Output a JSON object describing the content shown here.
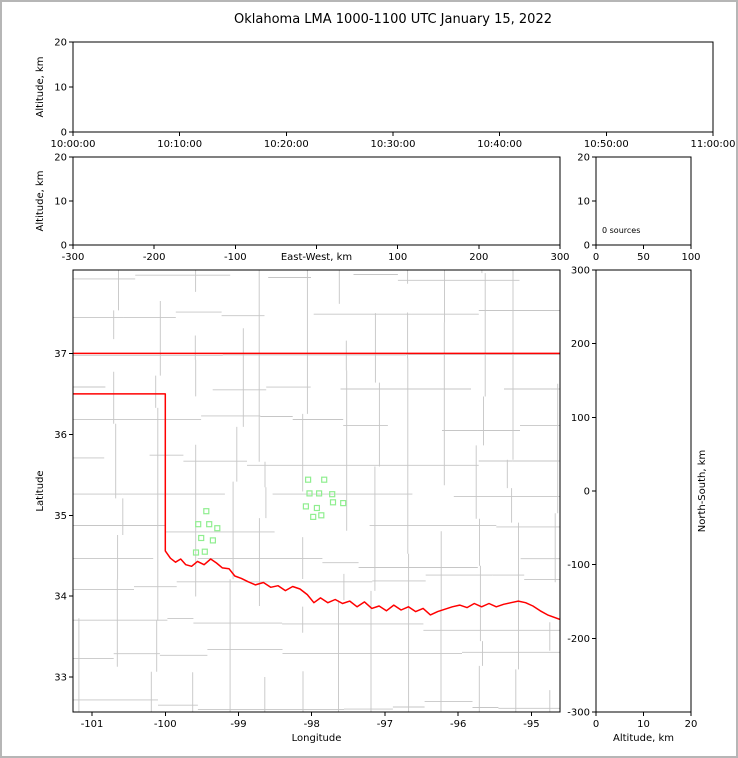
{
  "title": "Oklahoma LMA 1000-1100 UTC January 15, 2022",
  "colors": {
    "frame": "#000000",
    "tick_text": "#000000",
    "county": "#c6c6c6",
    "state_border": "#ff0000",
    "station": "#90ee90",
    "background": "#ffffff",
    "outer_border": "#b6b6b6"
  },
  "chart_data": [
    {
      "id": "time-height",
      "type": "scatter",
      "title": "",
      "xlabel": "",
      "ylabel": "Altitude, km",
      "xlim": [
        0,
        3600
      ],
      "ylim": [
        0,
        20
      ],
      "xtick_values": [
        0,
        600,
        1200,
        1800,
        2400,
        3000,
        3600
      ],
      "xtick_labels": [
        "10:00:00",
        "10:10:00",
        "10:20:00",
        "10:30:00",
        "10:40:00",
        "10:50:00",
        "11:00:00"
      ],
      "ytick_values": [
        0,
        10,
        20
      ],
      "grid": false,
      "points": []
    },
    {
      "id": "ew-height",
      "type": "scatter",
      "xlabel": "East-West, km",
      "xlabel_inline": true,
      "ylabel": "Altitude, km",
      "xlim": [
        -300,
        300
      ],
      "ylim": [
        0,
        20
      ],
      "xtick_values": [
        -300,
        -200,
        -100,
        0,
        100,
        200,
        300
      ],
      "ytick_values": [
        0,
        10,
        20
      ],
      "grid": false,
      "points": []
    },
    {
      "id": "source-histogram",
      "type": "line",
      "annotation": "0 sources",
      "xlim": [
        0,
        100
      ],
      "ylim": [
        0,
        20
      ],
      "xtick_values": [
        0,
        50,
        100
      ],
      "ytick_values": [
        0,
        10,
        20
      ],
      "grid": false,
      "points": []
    },
    {
      "id": "plan-view",
      "type": "scatter",
      "subtype": "map",
      "xlabel": "Longitude",
      "ylabel": "Latitude",
      "xlim": [
        -101.26,
        -94.61
      ],
      "ylim": [
        32.57,
        38.03
      ],
      "xtick_values": [
        -101,
        -100,
        -99,
        -98,
        -97,
        -96,
        -95
      ],
      "ytick_values": [
        33,
        34,
        35,
        36,
        37
      ],
      "grid": false,
      "stations": [
        [
          -98.05,
          35.44
        ],
        [
          -97.83,
          35.44
        ],
        [
          -98.03,
          35.27
        ],
        [
          -97.9,
          35.27
        ],
        [
          -97.72,
          35.26
        ],
        [
          -98.08,
          35.11
        ],
        [
          -97.93,
          35.09
        ],
        [
          -97.71,
          35.16
        ],
        [
          -97.57,
          35.15
        ],
        [
          -97.98,
          34.98
        ],
        [
          -97.87,
          35.0
        ],
        [
          -99.44,
          35.05
        ],
        [
          -99.55,
          34.89
        ],
        [
          -99.4,
          34.89
        ],
        [
          -99.29,
          34.84
        ],
        [
          -99.51,
          34.72
        ],
        [
          -99.35,
          34.69
        ],
        [
          -99.46,
          34.55
        ],
        [
          -99.58,
          34.54
        ]
      ],
      "state_border": [
        [
          [
            -101.3,
            37.0
          ],
          [
            -94.4,
            37.0
          ]
        ],
        [
          [
            -101.3,
            36.5
          ],
          [
            -100.0,
            36.5
          ],
          [
            -100.0,
            34.56
          ],
          [
            -99.93,
            34.47
          ],
          [
            -99.86,
            34.42
          ],
          [
            -99.79,
            34.46
          ],
          [
            -99.72,
            34.39
          ],
          [
            -99.64,
            34.37
          ],
          [
            -99.56,
            34.43
          ],
          [
            -99.47,
            34.39
          ],
          [
            -99.38,
            34.46
          ],
          [
            -99.3,
            34.41
          ],
          [
            -99.22,
            34.35
          ],
          [
            -99.13,
            34.34
          ],
          [
            -99.05,
            34.25
          ],
          [
            -98.96,
            34.22
          ],
          [
            -98.87,
            34.18
          ],
          [
            -98.77,
            34.14
          ],
          [
            -98.66,
            34.17
          ],
          [
            -98.56,
            34.11
          ],
          [
            -98.46,
            34.13
          ],
          [
            -98.36,
            34.07
          ],
          [
            -98.26,
            34.12
          ],
          [
            -98.16,
            34.09
          ],
          [
            -98.06,
            34.02
          ],
          [
            -97.97,
            33.92
          ],
          [
            -97.88,
            33.98
          ],
          [
            -97.78,
            33.92
          ],
          [
            -97.68,
            33.96
          ],
          [
            -97.58,
            33.91
          ],
          [
            -97.48,
            33.94
          ],
          [
            -97.38,
            33.87
          ],
          [
            -97.28,
            33.93
          ],
          [
            -97.18,
            33.85
          ],
          [
            -97.08,
            33.88
          ],
          [
            -96.98,
            33.82
          ],
          [
            -96.88,
            33.89
          ],
          [
            -96.78,
            33.83
          ],
          [
            -96.68,
            33.87
          ],
          [
            -96.58,
            33.81
          ],
          [
            -96.48,
            33.85
          ],
          [
            -96.38,
            33.77
          ],
          [
            -96.28,
            33.81
          ],
          [
            -96.18,
            33.84
          ],
          [
            -96.08,
            33.87
          ],
          [
            -95.98,
            33.89
          ],
          [
            -95.88,
            33.86
          ],
          [
            -95.78,
            33.91
          ],
          [
            -95.68,
            33.87
          ],
          [
            -95.58,
            33.91
          ],
          [
            -95.48,
            33.87
          ],
          [
            -95.38,
            33.9
          ],
          [
            -95.28,
            33.92
          ],
          [
            -95.18,
            33.94
          ],
          [
            -95.08,
            33.92
          ],
          [
            -94.98,
            33.88
          ],
          [
            -94.88,
            33.82
          ],
          [
            -94.78,
            33.77
          ],
          [
            -94.6,
            33.71
          ]
        ]
      ],
      "county_style": "approximate-grid"
    },
    {
      "id": "ns-height",
      "type": "scatter",
      "xlabel": "Altitude, km",
      "ylabel_right": "North-South, km",
      "xlim": [
        0,
        20
      ],
      "ylim": [
        -300,
        300
      ],
      "xtick_values": [
        0,
        10,
        20
      ],
      "ytick_values": [
        -300,
        -200,
        -100,
        0,
        100,
        200,
        300
      ],
      "grid": false,
      "points": []
    }
  ]
}
